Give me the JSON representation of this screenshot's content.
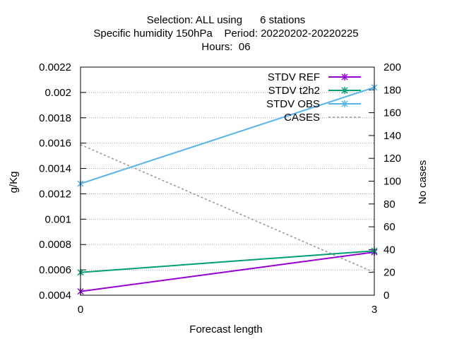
{
  "chart_data": {
    "type": "line",
    "title_lines": [
      "Selection: ALL using      6 stations",
      "Specific humidity 150hPa    Period: 20220202-20220225",
      "Hours:  06"
    ],
    "xlabel": "Forecast length",
    "ylabel": "g/Kg",
    "y2label": "No cases",
    "x": [
      0,
      3
    ],
    "x_ticks": [
      "0",
      "3"
    ],
    "xlim": [
      0,
      3
    ],
    "ylim": [
      0.0004,
      0.0022
    ],
    "y_ticks": [
      "0.0004",
      "0.0006",
      "0.0008",
      "0.001",
      "0.0012",
      "0.0014",
      "0.0016",
      "0.0018",
      "0.002",
      "0.0022"
    ],
    "y2lim": [
      0,
      200
    ],
    "y2_ticks": [
      "0",
      "20",
      "40",
      "60",
      "80",
      "100",
      "120",
      "140",
      "160",
      "180",
      "200"
    ],
    "grid": true,
    "legend_position": "top-right",
    "series": [
      {
        "name": "STDV REF",
        "axis": "y",
        "color": "#9400d3",
        "marker": "cross",
        "values": [
          0.00043,
          0.00074
        ]
      },
      {
        "name": "STDV t2h2",
        "axis": "y",
        "color": "#009e73",
        "marker": "cross",
        "values": [
          0.00058,
          0.00075
        ]
      },
      {
        "name": "STDV OBS",
        "axis": "y",
        "color": "#56b4e9",
        "marker": "cross",
        "values": [
          0.00128,
          0.00204
        ]
      },
      {
        "name": "CASES",
        "axis": "y2",
        "color": "#999999",
        "dashed": true,
        "values": [
          132,
          20
        ]
      }
    ]
  }
}
